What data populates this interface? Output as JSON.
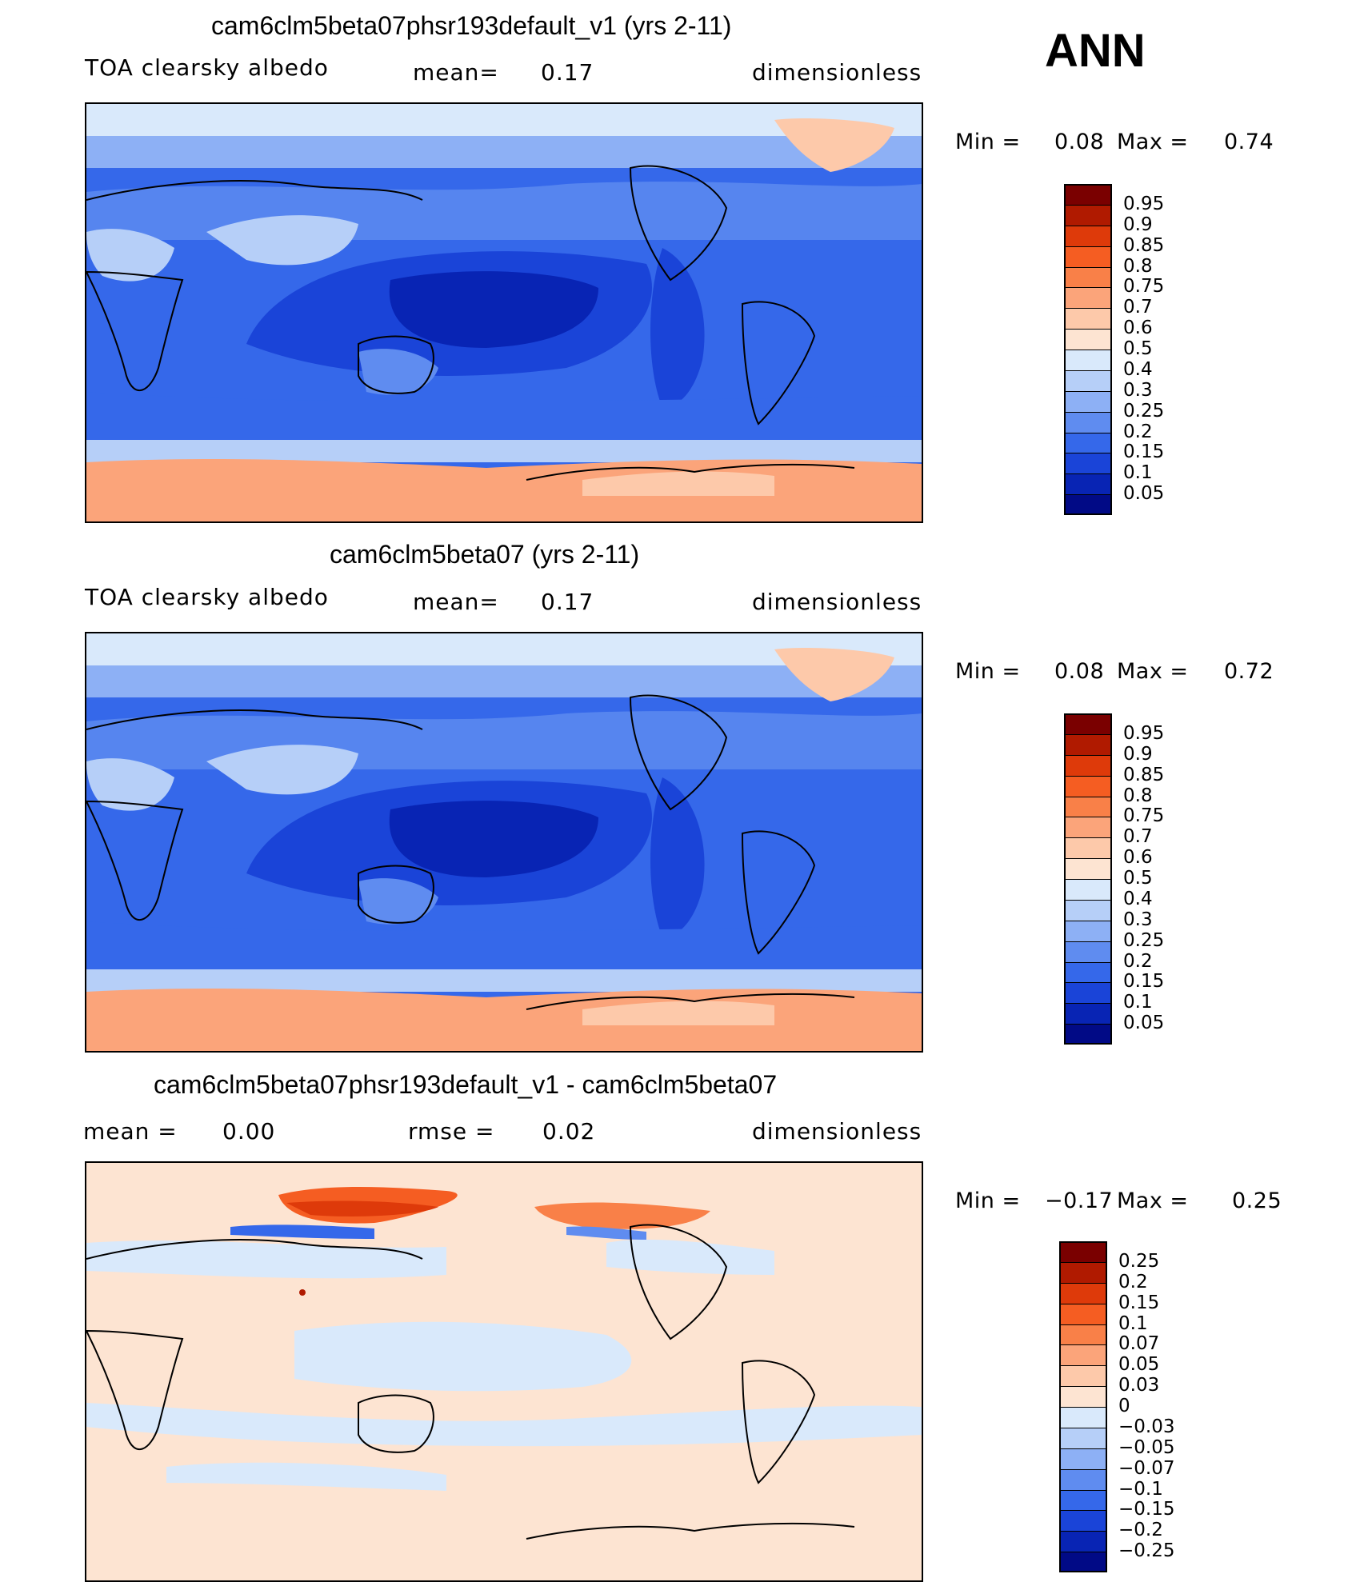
{
  "figure": {
    "season": "ANN"
  },
  "chart_data": [
    {
      "type": "heatmap",
      "title": "cam6clm5beta07phsr193default_v1 (yrs 2-11)",
      "variable": "TOA clearsky albedo",
      "mean_label": "mean=",
      "mean_value": "0.17",
      "units": "dimensionless",
      "min_label": "Min =",
      "min_value": "0.08",
      "max_label": "Max =",
      "max_value": "0.74",
      "colorbar": {
        "levels": [
          "0.95",
          "0.9",
          "0.85",
          "0.8",
          "0.75",
          "0.7",
          "0.6",
          "0.5",
          "0.4",
          "0.3",
          "0.25",
          "0.2",
          "0.15",
          "0.1",
          "0.05"
        ],
        "colors": [
          "#7a0000",
          "#b01a00",
          "#de3a0a",
          "#f55d22",
          "#f98048",
          "#fba47a",
          "#fdc9aa",
          "#fde4d2",
          "#d9e9fb",
          "#b6cff8",
          "#8db0f5",
          "#5f8cf0",
          "#3568ea",
          "#1a44d8",
          "#0824b4",
          "#010a86"
        ]
      }
    },
    {
      "type": "heatmap",
      "title": "cam6clm5beta07 (yrs 2-11)",
      "variable": "TOA clearsky albedo",
      "mean_label": "mean=",
      "mean_value": "0.17",
      "units": "dimensionless",
      "min_label": "Min =",
      "min_value": "0.08",
      "max_label": "Max =",
      "max_value": "0.72",
      "colorbar": {
        "levels": [
          "0.95",
          "0.9",
          "0.85",
          "0.8",
          "0.75",
          "0.7",
          "0.6",
          "0.5",
          "0.4",
          "0.3",
          "0.25",
          "0.2",
          "0.15",
          "0.1",
          "0.05"
        ],
        "colors": [
          "#7a0000",
          "#b01a00",
          "#de3a0a",
          "#f55d22",
          "#f98048",
          "#fba47a",
          "#fdc9aa",
          "#fde4d2",
          "#d9e9fb",
          "#b6cff8",
          "#8db0f5",
          "#5f8cf0",
          "#3568ea",
          "#1a44d8",
          "#0824b4",
          "#010a86"
        ]
      }
    },
    {
      "type": "heatmap",
      "title": "cam6clm5beta07phsr193default_v1 - cam6clm5beta07",
      "mean_label": "mean =",
      "mean_value": "0.00",
      "rmse_label": "rmse =",
      "rmse_value": "0.02",
      "units": "dimensionless",
      "min_label": "Min =",
      "min_value": "−0.17",
      "max_label": "Max =",
      "max_value": "0.25",
      "colorbar": {
        "levels": [
          "0.25",
          "0.2",
          "0.15",
          "0.1",
          "0.07",
          "0.05",
          "0.03",
          "0",
          "−0.03",
          "−0.05",
          "−0.07",
          "−0.1",
          "−0.15",
          "−0.2",
          "−0.25"
        ],
        "colors": [
          "#7a0000",
          "#b01a00",
          "#de3a0a",
          "#f55d22",
          "#f98048",
          "#fba47a",
          "#fdc9aa",
          "#fde4d2",
          "#d9e9fb",
          "#b6cff8",
          "#8db0f5",
          "#5f8cf0",
          "#3568ea",
          "#1a44d8",
          "#0824b4",
          "#010a86"
        ]
      }
    }
  ]
}
